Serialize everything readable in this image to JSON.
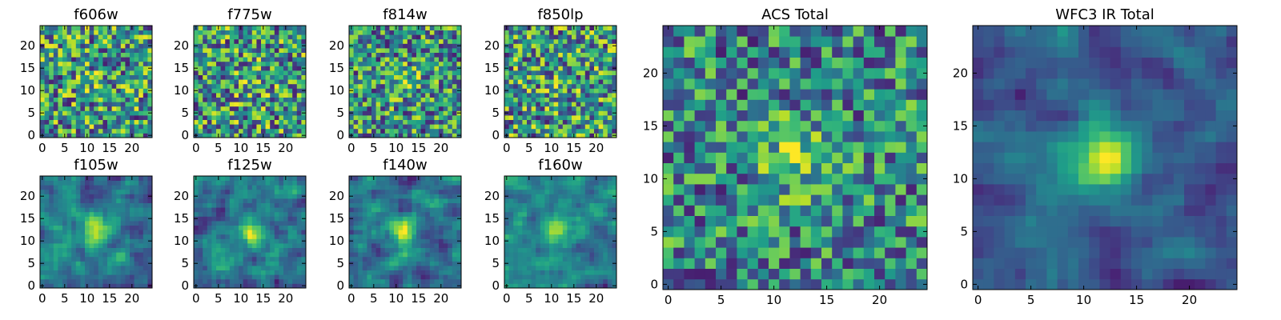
{
  "chart_data": [
    {
      "type": "heatmap",
      "title": "f606w",
      "xticks": [
        "0",
        "5",
        "10",
        "15",
        "20"
      ],
      "yticks": [
        "0",
        "5",
        "10",
        "15",
        "20"
      ],
      "xlim": [
        -0.5,
        24.5
      ],
      "ylim": [
        -0.5,
        24.5
      ],
      "colormap": "viridis",
      "grid": false,
      "noise": 0.9,
      "blob_strength": 0.1,
      "smooth": 0,
      "seed": 11
    },
    {
      "type": "heatmap",
      "title": "f775w",
      "xticks": [
        "0",
        "5",
        "10",
        "15",
        "20"
      ],
      "yticks": [
        "0",
        "5",
        "10",
        "15",
        "20"
      ],
      "xlim": [
        -0.5,
        24.5
      ],
      "ylim": [
        -0.5,
        24.5
      ],
      "colormap": "viridis",
      "grid": false,
      "noise": 0.9,
      "blob_strength": 0.15,
      "smooth": 0,
      "seed": 23
    },
    {
      "type": "heatmap",
      "title": "f814w",
      "xticks": [
        "0",
        "5",
        "10",
        "15",
        "20"
      ],
      "yticks": [
        "0",
        "5",
        "10",
        "15",
        "20"
      ],
      "xlim": [
        -0.5,
        24.5
      ],
      "ylim": [
        -0.5,
        24.5
      ],
      "colormap": "viridis",
      "grid": false,
      "noise": 0.85,
      "blob_strength": 0.25,
      "smooth": 0,
      "seed": 37
    },
    {
      "type": "heatmap",
      "title": "f850lp",
      "xticks": [
        "0",
        "5",
        "10",
        "15",
        "20"
      ],
      "yticks": [
        "0",
        "5",
        "10",
        "15",
        "20"
      ],
      "xlim": [
        -0.5,
        24.5
      ],
      "ylim": [
        -0.5,
        24.5
      ],
      "colormap": "viridis",
      "grid": false,
      "noise": 0.9,
      "blob_strength": 0.1,
      "smooth": 0,
      "seed": 41
    },
    {
      "type": "heatmap",
      "title": "f105w",
      "xticks": [
        "0",
        "5",
        "10",
        "15",
        "20"
      ],
      "yticks": [
        "0",
        "5",
        "10",
        "15",
        "20"
      ],
      "xlim": [
        -0.5,
        24.5
      ],
      "ylim": [
        -0.5,
        24.5
      ],
      "colormap": "viridis",
      "grid": false,
      "noise": 0.6,
      "blob_strength": 0.5,
      "smooth": 1,
      "seed": 53
    },
    {
      "type": "heatmap",
      "title": "f125w",
      "xticks": [
        "0",
        "5",
        "10",
        "15",
        "20"
      ],
      "yticks": [
        "0",
        "5",
        "10",
        "15",
        "20"
      ],
      "xlim": [
        -0.5,
        24.5
      ],
      "ylim": [
        -0.5,
        24.5
      ],
      "colormap": "viridis",
      "grid": false,
      "noise": 0.6,
      "blob_strength": 0.4,
      "smooth": 1,
      "seed": 67
    },
    {
      "type": "heatmap",
      "title": "f140w",
      "xticks": [
        "0",
        "5",
        "10",
        "15",
        "20"
      ],
      "yticks": [
        "0",
        "5",
        "10",
        "15",
        "20"
      ],
      "xlim": [
        -0.5,
        24.5
      ],
      "ylim": [
        -0.5,
        24.5
      ],
      "colormap": "viridis",
      "grid": false,
      "noise": 0.6,
      "blob_strength": 0.5,
      "smooth": 1,
      "seed": 71
    },
    {
      "type": "heatmap",
      "title": "f160w",
      "xticks": [
        "0",
        "5",
        "10",
        "15",
        "20"
      ],
      "yticks": [
        "0",
        "5",
        "10",
        "15",
        "20"
      ],
      "xlim": [
        -0.5,
        24.5
      ],
      "ylim": [
        -0.5,
        24.5
      ],
      "colormap": "viridis",
      "grid": false,
      "noise": 0.6,
      "blob_strength": 0.5,
      "smooth": 1,
      "seed": 83
    },
    {
      "type": "heatmap",
      "title": "ACS Total",
      "xticks": [
        "0",
        "5",
        "10",
        "15",
        "20"
      ],
      "yticks": [
        "0",
        "5",
        "10",
        "15",
        "20"
      ],
      "xlim": [
        -0.5,
        24.5
      ],
      "ylim": [
        -0.5,
        24.5
      ],
      "colormap": "viridis",
      "grid": false,
      "noise": 0.75,
      "blob_strength": 0.35,
      "smooth": 0,
      "seed": 97
    },
    {
      "type": "heatmap",
      "title": "WFC3 IR Total",
      "xticks": [
        "0",
        "5",
        "10",
        "15",
        "20"
      ],
      "yticks": [
        "0",
        "5",
        "10",
        "15",
        "20"
      ],
      "xlim": [
        -0.5,
        24.5
      ],
      "ylim": [
        -0.5,
        24.5
      ],
      "colormap": "viridis",
      "grid": false,
      "noise": 0.45,
      "blob_strength": 0.75,
      "smooth": 1,
      "seed": 101
    }
  ]
}
